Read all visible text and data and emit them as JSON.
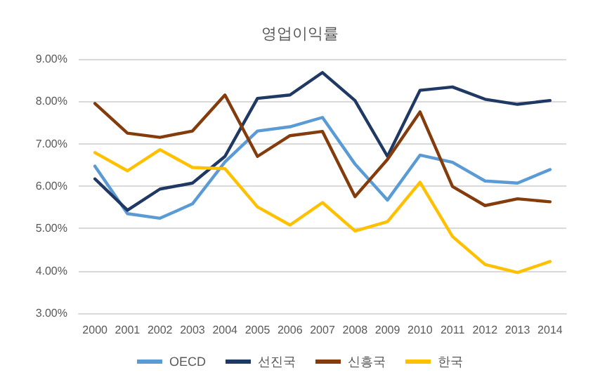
{
  "chart_data": {
    "type": "line",
    "title": "영업이익률",
    "categories": [
      "2000",
      "2001",
      "2002",
      "2003",
      "2004",
      "2005",
      "2006",
      "2007",
      "2008",
      "2009",
      "2010",
      "2011",
      "2012",
      "2013",
      "2014"
    ],
    "series": [
      {
        "name": "OECD",
        "color": "#5b9bd5",
        "values": [
          6.47,
          5.35,
          5.24,
          5.58,
          6.57,
          7.3,
          7.4,
          7.62,
          6.52,
          5.67,
          6.73,
          6.56,
          6.12,
          6.07,
          6.39
        ]
      },
      {
        "name": "선진국",
        "color": "#1f3864",
        "values": [
          6.17,
          5.43,
          5.93,
          6.07,
          6.7,
          8.07,
          8.15,
          8.68,
          8.02,
          6.7,
          8.26,
          8.34,
          8.05,
          7.93,
          8.02
        ]
      },
      {
        "name": "신흥국",
        "color": "#843c0c",
        "values": [
          7.95,
          7.25,
          7.15,
          7.3,
          8.15,
          6.7,
          7.19,
          7.29,
          5.75,
          6.63,
          7.75,
          5.99,
          5.54,
          5.7,
          5.63
        ]
      },
      {
        "name": "한국",
        "color": "#ffc000",
        "values": [
          6.79,
          6.36,
          6.86,
          6.44,
          6.41,
          5.51,
          5.08,
          5.61,
          4.94,
          5.16,
          6.09,
          4.81,
          4.15,
          3.96,
          4.22
        ]
      }
    ],
    "ylim": [
      3,
      9
    ],
    "yticks": [
      {
        "value": 3,
        "label": "3.00%"
      },
      {
        "value": 4,
        "label": "4.00%"
      },
      {
        "value": 5,
        "label": "5.00%"
      },
      {
        "value": 6,
        "label": "6.00%"
      },
      {
        "value": 7,
        "label": "7.00%"
      },
      {
        "value": 8,
        "label": "8.00%"
      },
      {
        "value": 9,
        "label": "9.00%"
      }
    ],
    "grid": "y",
    "legend": "bottom",
    "marker": "none",
    "line_style": "solid"
  }
}
